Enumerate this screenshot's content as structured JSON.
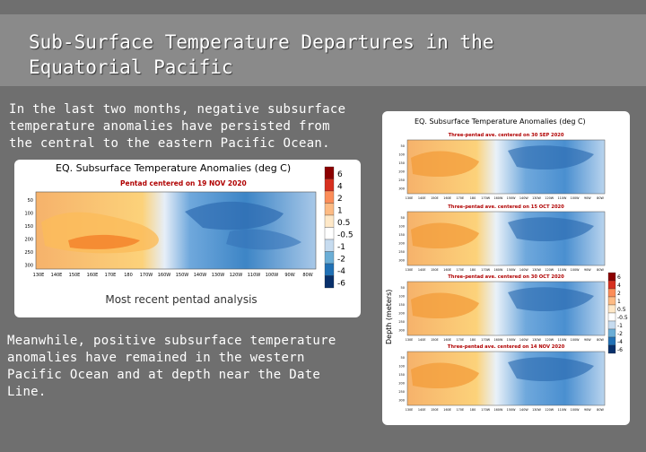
{
  "slide": {
    "title": "Sub-Surface Temperature Departures in the Equatorial Pacific",
    "paragraph_top": "In the last two months, negative subsurface temperature anomalies have persisted from the central to the eastern Pacific Ocean.",
    "paragraph_bottom": "Meanwhile, positive subsurface temperature anomalies have remained in the western Pacific Ocean and at depth near the Date Line."
  },
  "main_figure": {
    "title": "EQ. Subsurface Temperature Anomalies (deg C)",
    "subtitle": "Pentad centered on 19 NOV 2020",
    "caption": "Most recent pentad analysis",
    "yticks": [
      "50",
      "100",
      "150",
      "200",
      "250",
      "300"
    ],
    "xticks": [
      "130E",
      "140E",
      "150E",
      "160E",
      "170E",
      "180",
      "170W",
      "160W",
      "150W",
      "140W",
      "130W",
      "120W",
      "110W",
      "100W",
      "90W",
      "80W"
    ],
    "colorbar": [
      "6",
      "4",
      "2",
      "1",
      "0.5",
      "-0.5",
      "-1",
      "-2",
      "-4",
      "-6"
    ]
  },
  "history_figure": {
    "title": "EQ. Subsurface Temperature Anomalies (deg C)",
    "ylabel": "Depth (meters)",
    "panels": [
      "Three-pentad ave. centered on 30 SEP 2020",
      "Three-pentad ave. centered on 15 OCT 2020",
      "Three-pentad ave. centered on 30 OCT 2020",
      "Three-pentad ave. centered on 14 NOV 2020"
    ],
    "yticks": [
      "50",
      "100",
      "150",
      "200",
      "250",
      "300"
    ],
    "xticks": [
      "130E",
      "140E",
      "150E",
      "160E",
      "170E",
      "180",
      "170W",
      "160W",
      "150W",
      "140W",
      "130W",
      "120W",
      "110W",
      "100W",
      "90W",
      "80W"
    ],
    "colorbar": [
      "6",
      "4",
      "2",
      "1",
      "0.5",
      "-0.5",
      "-1",
      "-2",
      "-4",
      "-6"
    ]
  },
  "colors": {
    "colorbar_fill": [
      "#8b0000",
      "#d7301f",
      "#fc8d59",
      "#fdbb84",
      "#fee8c8",
      "#ffffff",
      "#c6dbef",
      "#6baed6",
      "#2171b5",
      "#08306b"
    ]
  }
}
